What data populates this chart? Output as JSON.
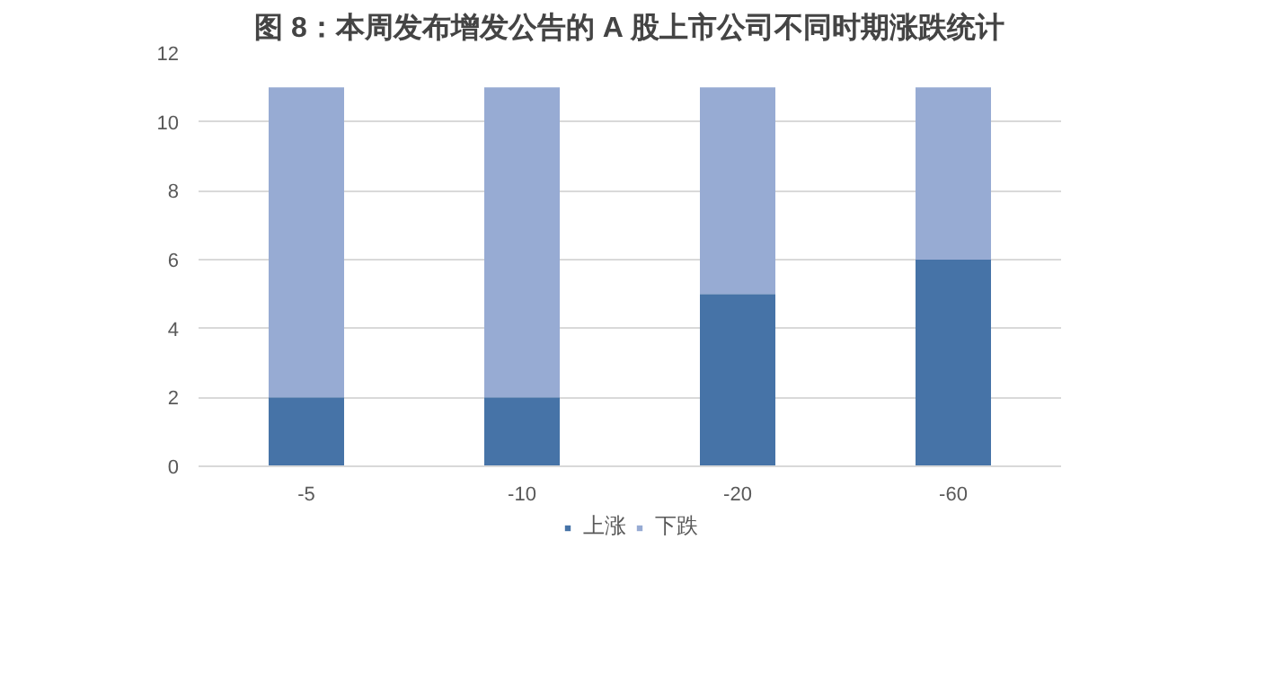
{
  "chart_data": {
    "type": "bar",
    "title": "图 8：本周发布增发公告的 A 股上市公司不同时期涨跌统计",
    "categories": [
      "-5",
      "-10",
      "-20",
      "-60"
    ],
    "stacked": true,
    "series": [
      {
        "name": "上涨",
        "color": "#4673a7",
        "values": [
          2,
          2,
          5,
          6
        ]
      },
      {
        "name": "下跌",
        "color": "#97abd3",
        "values": [
          9,
          9,
          6,
          5
        ]
      }
    ],
    "ylim": [
      0,
      12
    ],
    "yticks": [
      0,
      2,
      4,
      6,
      8,
      10,
      12
    ],
    "grid": "y",
    "legend": "bottom"
  }
}
